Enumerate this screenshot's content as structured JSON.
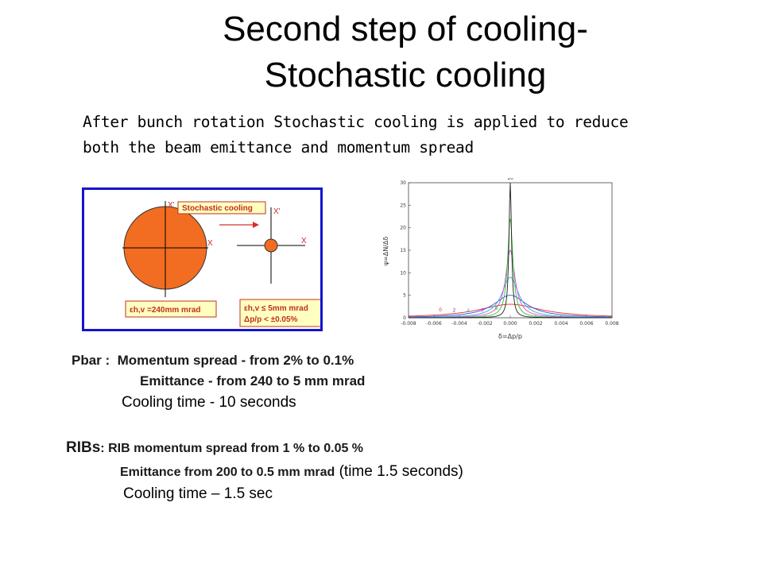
{
  "title": {
    "line1": "Second step of cooling-",
    "line2": "Stochastic cooling"
  },
  "intro": {
    "line1": "After bunch rotation Stochastic cooling is applied to reduce",
    "line2": "both the beam emittance and momentum spread"
  },
  "diagram": {
    "process_label": "Stochastic cooling",
    "axis_xprime_left": "X'",
    "axis_x_left": "X",
    "axis_xprime_right": "X'",
    "axis_x_right": "X",
    "before_label": "εh,v =240mm mrad",
    "after_label_1": "εh,v ≤ 5mm mrad",
    "after_label_2": "Δp/p < ±0.05%",
    "colors": {
      "beam": "#f26d21",
      "frame": "#1414d0",
      "box": "#ffffc0",
      "arrow": "#d03030"
    }
  },
  "chart_data": {
    "type": "line",
    "xlabel": "δ=Δp/p",
    "ylabel": "ψ=ΔN/Δδ",
    "xlim": [
      -0.008,
      0.008
    ],
    "ylim": [
      0,
      30
    ],
    "x_ticks": [
      "-0.008",
      "-0.006",
      "-0.004",
      "-0.002",
      "0.000",
      "0.002",
      "0.004",
      "0.006",
      "0.008"
    ],
    "y_ticks": [
      "0",
      "5",
      "10",
      "15",
      "20",
      "25",
      "30"
    ],
    "curve_labels": [
      "0",
      "2",
      "4",
      "6",
      "8",
      "10"
    ],
    "series": [
      {
        "label": "0",
        "peak": 3.0,
        "width": 0.003,
        "color": "#e03030"
      },
      {
        "label": "2",
        "peak": 5.0,
        "width": 0.0016,
        "color": "#3050e0"
      },
      {
        "label": "4",
        "peak": 9.0,
        "width": 0.0008,
        "color": "#30b0d0"
      },
      {
        "label": "6",
        "peak": 15.0,
        "width": 0.00045,
        "color": "#e040e0"
      },
      {
        "label": "8",
        "peak": 22.0,
        "width": 0.00025,
        "color": "#30c030"
      },
      {
        "label": "10",
        "peak": 30.0,
        "width": 0.00012,
        "color": "#202020"
      }
    ]
  },
  "pbar": {
    "label": "Pbar :",
    "momentum": "Momentum spread - from 2% to 0.1%",
    "emittance": "Emittance -  from 240 to 5 mm mrad",
    "cooling_time": "Cooling time - 10 seconds"
  },
  "ribs": {
    "label": "RIBs",
    "momentum": ": RIB momentum spread from 1 % to 0.05 %",
    "emittance": "Emittance from 200 to 0.5 mm mrad",
    "emittance_time": " (time 1.5 seconds)",
    "cooling_time": "Cooling time – 1.5 sec"
  }
}
